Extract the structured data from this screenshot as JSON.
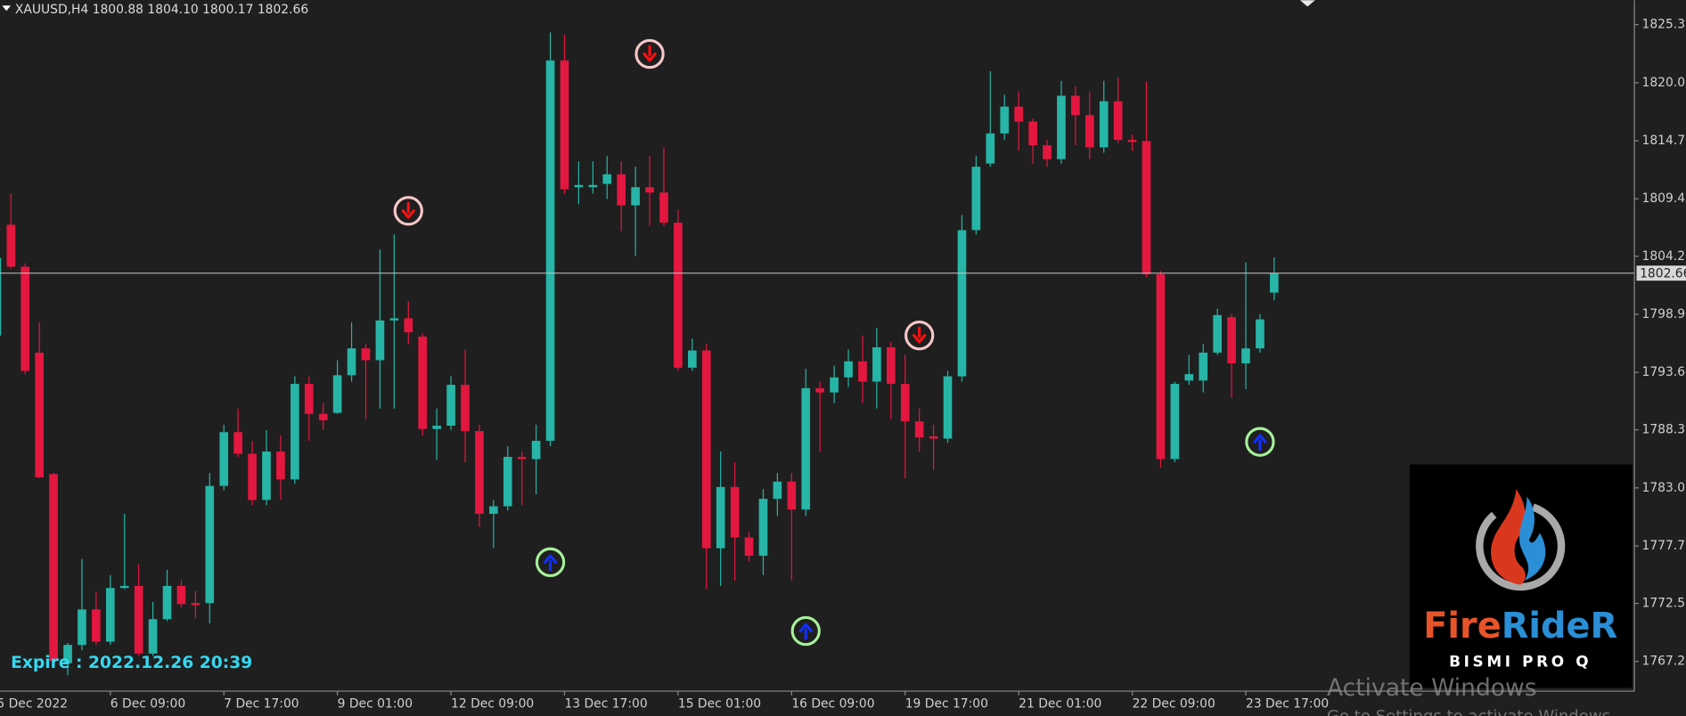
{
  "chart_data": {
    "type": "candlestick",
    "title": "XAUUSD,H4  1800.88 1804.10 1800.17 1802.66",
    "annotation": "Expire : 2022.12.26 20:39",
    "logo": {
      "name": [
        "Fire",
        "RideR"
      ],
      "subtitle": "BISMI PRO Q"
    },
    "watermark": [
      "Activate Windows",
      "Go to Settings to activate Windows."
    ],
    "background": "#1f1f1f",
    "up_color": "#26b5a6",
    "down_color": "#e3173f",
    "grid": false,
    "ylim": [
      1764.49,
      1827.59
    ],
    "yticks": [
      1825.35,
      1820.05,
      1814.75,
      1809.45,
      {
        "value": 1804.2,
        "label": "1804.20"
      },
      {
        "value": 1798.9,
        "label": "1798.90"
      },
      {
        "value": 1793.6,
        "label": "1793.60"
      },
      1788.35,
      1783.05,
      1777.75,
      {
        "value": 1772.5,
        "label": "1772.50"
      },
      {
        "value": 1767.2,
        "label": "1767.20"
      }
    ],
    "categories": [
      "5 Dec 2022",
      null,
      null,
      null,
      null,
      null,
      null,
      null,
      "6 Dec 09:00",
      null,
      null,
      null,
      null,
      null,
      null,
      null,
      "7 Dec 17:00",
      null,
      null,
      null,
      null,
      null,
      null,
      null,
      "9 Dec 01:00",
      null,
      null,
      null,
      null,
      null,
      null,
      null,
      "12 Dec 09:00",
      null,
      null,
      null,
      null,
      null,
      null,
      null,
      "13 Dec 17:00",
      null,
      null,
      null,
      null,
      null,
      null,
      null,
      "15 Dec 01:00",
      null,
      null,
      null,
      null,
      null,
      null,
      null,
      "16 Dec 09:00",
      null,
      null,
      null,
      null,
      null,
      null,
      null,
      "19 Dec 17:00",
      null,
      null,
      null,
      null,
      null,
      null,
      null,
      "21 Dec 01:00",
      null,
      null,
      null,
      null,
      null,
      null,
      null,
      "22 Dec 09:00",
      null,
      null,
      null,
      null,
      null,
      null,
      null,
      "23 Dec 17:00",
      null,
      null
    ],
    "open": [
      1796.97,
      1807.08,
      1803.25,
      1795.4,
      1784.31,
      1767.04,
      1768.71,
      1771.95,
      1769.0,
      1773.91,
      1774.1,
      1767.92,
      1771.06,
      1774.1,
      1772.53,
      1772.53,
      1783.23,
      1788.14,
      1786.17,
      1781.95,
      1786.37,
      1783.82,
      1792.55,
      1789.81,
      1789.9,
      1793.34,
      1795.79,
      1794.71,
      1798.34,
      1798.54,
      1796.87,
      1788.43,
      1788.73,
      1792.46,
      1788.24,
      1780.68,
      1781.37,
      1785.88,
      1785.68,
      1787.35,
      1822.09,
      1810.51,
      1810.51,
      1810.81,
      1811.69,
      1808.85,
      1810.51,
      1810.02,
      1807.27,
      1794.03,
      1795.6,
      1777.54,
      1783.13,
      1778.52,
      1776.85,
      1782.05,
      1783.62,
      1781.07,
      1792.16,
      1791.77,
      1793.14,
      1794.61,
      1792.75,
      1795.89,
      1792.55,
      1789.12,
      1787.75,
      1787.55,
      1793.24,
      1806.59,
      1812.67,
      1815.42,
      1817.87,
      1816.5,
      1814.34,
      1813.07,
      1818.86,
      1817.09,
      1814.15,
      1818.36,
      1814.83,
      1814.73,
      1802.56,
      1785.68,
      1792.85,
      1792.85,
      1795.4,
      1798.64,
      1794.42,
      1795.79,
      1800.88
    ],
    "high": [
      1805.22,
      1809.92,
      1803.55,
      1798.15,
      1784.41,
      1768.9,
      1776.56,
      1773.61,
      1775.09,
      1780.68,
      1776.07,
      1772.63,
      1775.58,
      1774.59,
      1773.61,
      1784.41,
      1788.82,
      1790.3,
      1787.35,
      1788.33,
      1787.84,
      1793.24,
      1793.24,
      1790.79,
      1794.71,
      1798.15,
      1796.19,
      1804.82,
      1806.2,
      1800.11,
      1797.17,
      1790.3,
      1793.24,
      1795.69,
      1788.82,
      1781.95,
      1786.86,
      1786.37,
      1788.82,
      1824.65,
      1824.45,
      1812.87,
      1812.87,
      1813.36,
      1812.87,
      1812.38,
      1813.36,
      1814.14,
      1808.45,
      1796.68,
      1796.19,
      1786.37,
      1785.39,
      1779.01,
      1782.94,
      1784.41,
      1784.41,
      1793.93,
      1792.75,
      1794.22,
      1795.69,
      1796.97,
      1797.66,
      1796.38,
      1795.2,
      1790.3,
      1788.82,
      1793.73,
      1807.96,
      1813.36,
      1821.11,
      1818.95,
      1819.25,
      1816.79,
      1814.83,
      1820.23,
      1819.74,
      1819.25,
      1820.23,
      1820.52,
      1815.32,
      1820.13,
      1802.86,
      1792.75,
      1795.2,
      1796.19,
      1799.42,
      1798.93,
      1803.64,
      1798.93,
      1804.1
    ],
    "low": [
      1796.68,
      1803.06,
      1793.44,
      1783.92,
      1766.74,
      1765.96,
      1768.22,
      1768.71,
      1768.71,
      1773.81,
      1767.72,
      1767.72,
      1770.87,
      1772.14,
      1771.16,
      1770.67,
      1782.84,
      1785.88,
      1781.46,
      1781.46,
      1781.95,
      1783.43,
      1787.35,
      1788.33,
      1789.81,
      1792.75,
      1789.32,
      1790.3,
      1790.3,
      1796.19,
      1787.84,
      1785.59,
      1788.33,
      1785.39,
      1779.5,
      1777.54,
      1780.97,
      1781.46,
      1782.45,
      1786.86,
      1809.92,
      1808.94,
      1809.92,
      1809.43,
      1806.49,
      1804.23,
      1806.98,
      1806.98,
      1793.73,
      1793.73,
      1773.81,
      1774.1,
      1774.59,
      1776.36,
      1775.09,
      1780.48,
      1774.59,
      1780.48,
      1786.37,
      1790.79,
      1792.26,
      1790.79,
      1790.3,
      1789.32,
      1783.92,
      1786.37,
      1784.7,
      1787.16,
      1792.75,
      1806.2,
      1812.38,
      1814.83,
      1813.85,
      1812.67,
      1812.38,
      1812.67,
      1814.34,
      1813.07,
      1813.65,
      1814.54,
      1813.85,
      1802.27,
      1784.9,
      1785.39,
      1792.46,
      1791.77,
      1795.2,
      1791.28,
      1792.06,
      1795.4,
      1800.17
    ],
    "close": [
      1804.04,
      1803.25,
      1793.73,
      1784.02,
      1767.23,
      1768.71,
      1771.95,
      1769.0,
      1773.91,
      1774.1,
      1767.92,
      1771.06,
      1774.1,
      1772.43,
      1772.34,
      1783.23,
      1788.14,
      1786.17,
      1781.95,
      1786.37,
      1783.82,
      1792.55,
      1789.81,
      1789.22,
      1793.34,
      1795.79,
      1794.71,
      1798.34,
      1798.54,
      1797.26,
      1788.43,
      1788.73,
      1792.46,
      1788.24,
      1780.68,
      1781.37,
      1785.88,
      1785.68,
      1787.35,
      1822.09,
      1810.32,
      1810.71,
      1810.71,
      1811.69,
      1808.85,
      1810.51,
      1810.02,
      1807.27,
      1794.03,
      1795.6,
      1777.54,
      1783.13,
      1778.52,
      1776.85,
      1782.05,
      1783.62,
      1781.07,
      1792.16,
      1791.77,
      1793.14,
      1794.61,
      1792.75,
      1795.89,
      1792.55,
      1789.12,
      1787.65,
      1787.55,
      1793.24,
      1806.59,
      1812.38,
      1815.42,
      1817.87,
      1816.5,
      1814.34,
      1813.07,
      1818.86,
      1817.09,
      1814.15,
      1818.36,
      1814.83,
      1814.64,
      1802.56,
      1785.68,
      1792.55,
      1793.44,
      1795.4,
      1798.83,
      1794.42,
      1795.79,
      1798.44,
      1802.66
    ],
    "signals": [
      {
        "index": 29,
        "price": 1808.35,
        "direction": "down"
      },
      {
        "index": 46,
        "price": 1822.68,
        "direction": "down"
      },
      {
        "index": 65,
        "price": 1796.97,
        "direction": "down"
      },
      {
        "index": 39,
        "price": 1776.26,
        "direction": "up"
      },
      {
        "index": 57,
        "price": 1769.98,
        "direction": "up"
      },
      {
        "index": 89,
        "price": 1787.25,
        "direction": "up"
      }
    ]
  }
}
